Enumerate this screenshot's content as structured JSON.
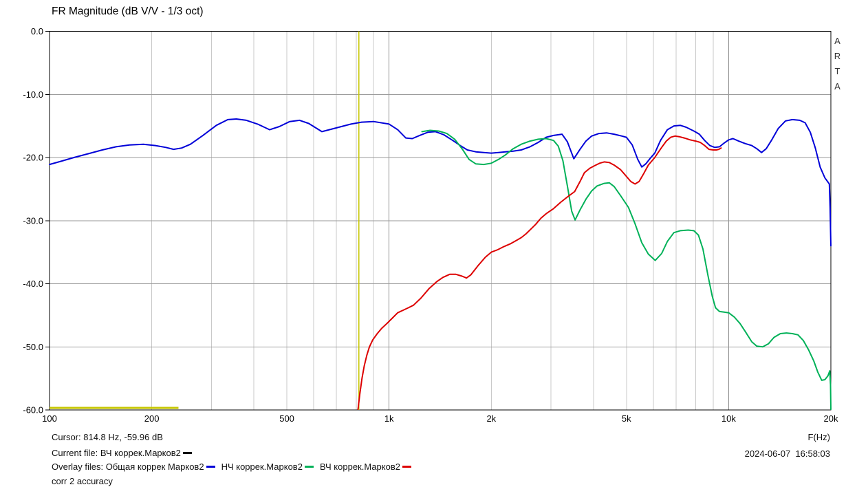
{
  "window": {
    "title": "FR Magnitude (dB V/V - 1/3 oct)",
    "watermark_vertical": "ARTA"
  },
  "statusbar": {
    "cursor_text": "Cursor: 814.8 Hz, -59.96 dB",
    "current_file_label": "Current file: ",
    "current_file_name": "ВЧ коррек.Марков2",
    "current_file_marker_color": "#000000",
    "overlay_label": "Overlay files: ",
    "overlays": [
      {
        "name": "Общая коррек Марков2",
        "color": "#0000d8"
      },
      {
        "name": "НЧ коррек.Марков2",
        "color": "#00b158"
      },
      {
        "name": "ВЧ коррек.Марков2",
        "color": "#dd0000"
      }
    ],
    "note": "corr 2 accuracy",
    "datetime": "2024-06-07  16:58:03",
    "freq_axis_unit": "F(Hz)"
  },
  "chart_data": {
    "type": "line",
    "title": "FR Magnitude (dB V/V - 1/3 oct)",
    "xlabel": "F(Hz)",
    "ylabel": "dB",
    "grid": true,
    "x_axis": {
      "scale": "log",
      "min": 100,
      "max": 20000,
      "labeled_ticks": [
        [
          100,
          "100"
        ],
        [
          200,
          "200"
        ],
        [
          500,
          "500"
        ],
        [
          1000,
          "1k"
        ],
        [
          2000,
          "2k"
        ],
        [
          5000,
          "5k"
        ],
        [
          10000,
          "10k"
        ],
        [
          20000,
          "20k"
        ]
      ],
      "minor_gridlines": [
        200,
        300,
        400,
        500,
        600,
        700,
        800,
        900,
        2000,
        3000,
        4000,
        5000,
        6000,
        7000,
        8000,
        9000
      ],
      "decade_gridlines": [
        1000,
        10000
      ]
    },
    "y_axis": {
      "min": -60,
      "max": 0,
      "step": 10,
      "tick_labels": [
        "0.0",
        "-10.0",
        "-20.0",
        "-30.0",
        "-40.0",
        "-50.0",
        "-60.0"
      ]
    },
    "colors": {
      "minor_grid": "#c9c9c9",
      "decade_grid": "#8c8c8c",
      "horizontal_grid": "#9a9a9a",
      "border": "#000000",
      "cursor": "#c6c600"
    },
    "cursor": {
      "freq": 814.8,
      "db": -59.96
    },
    "bottom_marker": {
      "from": 100,
      "to": 240,
      "db": -59.7
    },
    "series": [
      {
        "name": "Общая коррек Марков2",
        "color": "#0000d8",
        "points": [
          [
            100,
            -21.1
          ],
          [
            108,
            -20.6
          ],
          [
            118,
            -20.0
          ],
          [
            130,
            -19.4
          ],
          [
            143,
            -18.8
          ],
          [
            157,
            -18.3
          ],
          [
            172,
            -18.0
          ],
          [
            189,
            -17.9
          ],
          [
            205,
            -18.1
          ],
          [
            220,
            -18.4
          ],
          [
            232,
            -18.7
          ],
          [
            245,
            -18.5
          ],
          [
            260,
            -17.9
          ],
          [
            283,
            -16.5
          ],
          [
            310,
            -14.9
          ],
          [
            335,
            -14.0
          ],
          [
            355,
            -13.9
          ],
          [
            380,
            -14.1
          ],
          [
            410,
            -14.7
          ],
          [
            445,
            -15.6
          ],
          [
            475,
            -15.1
          ],
          [
            510,
            -14.3
          ],
          [
            545,
            -14.1
          ],
          [
            580,
            -14.6
          ],
          [
            634,
            -15.9
          ],
          [
            700,
            -15.3
          ],
          [
            772,
            -14.7
          ],
          [
            830,
            -14.4
          ],
          [
            900,
            -14.3
          ],
          [
            1000,
            -14.7
          ],
          [
            1060,
            -15.6
          ],
          [
            1120,
            -16.9
          ],
          [
            1170,
            -17.0
          ],
          [
            1230,
            -16.5
          ],
          [
            1300,
            -16.0
          ],
          [
            1370,
            -15.9
          ],
          [
            1450,
            -16.4
          ],
          [
            1540,
            -17.3
          ],
          [
            1620,
            -18.1
          ],
          [
            1700,
            -18.8
          ],
          [
            1800,
            -19.1
          ],
          [
            1900,
            -19.2
          ],
          [
            2000,
            -19.3
          ],
          [
            2100,
            -19.2
          ],
          [
            2200,
            -19.1
          ],
          [
            2320,
            -19.0
          ],
          [
            2450,
            -18.8
          ],
          [
            2600,
            -18.3
          ],
          [
            2750,
            -17.6
          ],
          [
            2900,
            -16.8
          ],
          [
            3050,
            -16.5
          ],
          [
            3230,
            -16.3
          ],
          [
            3350,
            -17.5
          ],
          [
            3500,
            -20.2
          ],
          [
            3650,
            -18.7
          ],
          [
            3800,
            -17.4
          ],
          [
            3950,
            -16.6
          ],
          [
            4150,
            -16.2
          ],
          [
            4370,
            -16.1
          ],
          [
            4600,
            -16.3
          ],
          [
            4850,
            -16.6
          ],
          [
            5000,
            -16.8
          ],
          [
            5200,
            -18.0
          ],
          [
            5400,
            -20.3
          ],
          [
            5550,
            -21.5
          ],
          [
            5700,
            -21.0
          ],
          [
            5900,
            -20.0
          ],
          [
            6060,
            -19.3
          ],
          [
            6300,
            -17.3
          ],
          [
            6600,
            -15.6
          ],
          [
            6900,
            -15.0
          ],
          [
            7200,
            -14.9
          ],
          [
            7500,
            -15.2
          ],
          [
            7900,
            -15.8
          ],
          [
            8200,
            -16.3
          ],
          [
            8500,
            -17.3
          ],
          [
            8800,
            -18.1
          ],
          [
            9100,
            -18.4
          ],
          [
            9400,
            -18.3
          ],
          [
            9700,
            -17.7
          ],
          [
            10000,
            -17.2
          ],
          [
            10300,
            -17.0
          ],
          [
            10700,
            -17.4
          ],
          [
            11200,
            -17.8
          ],
          [
            11700,
            -18.1
          ],
          [
            12100,
            -18.6
          ],
          [
            12500,
            -19.2
          ],
          [
            12900,
            -18.6
          ],
          [
            13400,
            -17.2
          ],
          [
            14000,
            -15.4
          ],
          [
            14700,
            -14.2
          ],
          [
            15400,
            -14.0
          ],
          [
            16200,
            -14.1
          ],
          [
            16800,
            -14.5
          ],
          [
            17400,
            -16.0
          ],
          [
            18000,
            -18.5
          ],
          [
            18600,
            -21.5
          ],
          [
            19200,
            -23.2
          ],
          [
            19800,
            -24.2
          ],
          [
            19900,
            -28.0
          ],
          [
            20000,
            -34.0
          ]
        ]
      },
      {
        "name": "НЧ коррек.Марков2",
        "color": "#00b158",
        "points": [
          [
            1250,
            -15.9
          ],
          [
            1320,
            -15.7
          ],
          [
            1400,
            -15.8
          ],
          [
            1480,
            -16.2
          ],
          [
            1560,
            -17.1
          ],
          [
            1640,
            -18.6
          ],
          [
            1720,
            -20.3
          ],
          [
            1800,
            -21.0
          ],
          [
            1900,
            -21.1
          ],
          [
            2000,
            -20.9
          ],
          [
            2100,
            -20.3
          ],
          [
            2200,
            -19.6
          ],
          [
            2320,
            -18.6
          ],
          [
            2450,
            -17.9
          ],
          [
            2600,
            -17.4
          ],
          [
            2750,
            -17.1
          ],
          [
            2900,
            -17.0
          ],
          [
            3050,
            -17.3
          ],
          [
            3150,
            -18.2
          ],
          [
            3250,
            -20.5
          ],
          [
            3350,
            -24.5
          ],
          [
            3450,
            -28.5
          ],
          [
            3530,
            -29.9
          ],
          [
            3650,
            -28.3
          ],
          [
            3800,
            -26.6
          ],
          [
            3950,
            -25.3
          ],
          [
            4100,
            -24.5
          ],
          [
            4300,
            -24.1
          ],
          [
            4450,
            -24.0
          ],
          [
            4600,
            -24.6
          ],
          [
            4800,
            -26.0
          ],
          [
            5070,
            -27.9
          ],
          [
            5300,
            -30.5
          ],
          [
            5550,
            -33.5
          ],
          [
            5800,
            -35.3
          ],
          [
            6080,
            -36.3
          ],
          [
            6350,
            -35.2
          ],
          [
            6600,
            -33.3
          ],
          [
            6900,
            -31.9
          ],
          [
            7200,
            -31.6
          ],
          [
            7600,
            -31.5
          ],
          [
            7900,
            -31.6
          ],
          [
            8150,
            -32.3
          ],
          [
            8400,
            -34.5
          ],
          [
            8700,
            -38.8
          ],
          [
            8950,
            -42.0
          ],
          [
            9150,
            -43.8
          ],
          [
            9400,
            -44.4
          ],
          [
            9700,
            -44.5
          ],
          [
            10000,
            -44.6
          ],
          [
            10400,
            -45.3
          ],
          [
            10800,
            -46.3
          ],
          [
            11200,
            -47.6
          ],
          [
            11700,
            -49.2
          ],
          [
            12100,
            -49.9
          ],
          [
            12600,
            -50.0
          ],
          [
            13100,
            -49.5
          ],
          [
            13600,
            -48.5
          ],
          [
            14200,
            -47.9
          ],
          [
            14800,
            -47.8
          ],
          [
            15400,
            -47.9
          ],
          [
            16000,
            -48.1
          ],
          [
            16600,
            -49.0
          ],
          [
            17200,
            -50.5
          ],
          [
            17800,
            -52.2
          ],
          [
            18300,
            -54.0
          ],
          [
            18800,
            -55.3
          ],
          [
            19200,
            -55.2
          ],
          [
            19600,
            -54.6
          ],
          [
            19850,
            -53.8
          ],
          [
            19950,
            -56.0
          ],
          [
            20000,
            -59.9
          ]
        ]
      },
      {
        "name": "ВЧ коррек.Марков2",
        "color": "#dd0000",
        "points": [
          [
            810,
            -59.9
          ],
          [
            820,
            -57.5
          ],
          [
            832,
            -55.0
          ],
          [
            845,
            -53.0
          ],
          [
            860,
            -51.3
          ],
          [
            875,
            -50.0
          ],
          [
            895,
            -48.9
          ],
          [
            920,
            -48.0
          ],
          [
            950,
            -47.1
          ],
          [
            985,
            -46.3
          ],
          [
            1020,
            -45.5
          ],
          [
            1060,
            -44.6
          ],
          [
            1100,
            -44.2
          ],
          [
            1140,
            -43.8
          ],
          [
            1180,
            -43.4
          ],
          [
            1240,
            -42.3
          ],
          [
            1310,
            -40.8
          ],
          [
            1380,
            -39.7
          ],
          [
            1440,
            -39.0
          ],
          [
            1510,
            -38.5
          ],
          [
            1570,
            -38.5
          ],
          [
            1640,
            -38.8
          ],
          [
            1690,
            -39.1
          ],
          [
            1740,
            -38.6
          ],
          [
            1830,
            -37.1
          ],
          [
            1920,
            -35.8
          ],
          [
            2000,
            -35.0
          ],
          [
            2090,
            -34.6
          ],
          [
            2180,
            -34.1
          ],
          [
            2270,
            -33.7
          ],
          [
            2360,
            -33.2
          ],
          [
            2450,
            -32.7
          ],
          [
            2530,
            -32.1
          ],
          [
            2620,
            -31.3
          ],
          [
            2700,
            -30.6
          ],
          [
            2800,
            -29.6
          ],
          [
            2900,
            -28.9
          ],
          [
            3050,
            -28.1
          ],
          [
            3200,
            -27.1
          ],
          [
            3360,
            -26.2
          ],
          [
            3520,
            -25.4
          ],
          [
            3650,
            -23.8
          ],
          [
            3760,
            -22.4
          ],
          [
            3900,
            -21.7
          ],
          [
            4030,
            -21.3
          ],
          [
            4170,
            -20.9
          ],
          [
            4300,
            -20.7
          ],
          [
            4450,
            -20.8
          ],
          [
            4600,
            -21.2
          ],
          [
            4800,
            -21.9
          ],
          [
            5000,
            -23.0
          ],
          [
            5150,
            -23.8
          ],
          [
            5300,
            -24.2
          ],
          [
            5450,
            -23.8
          ],
          [
            5600,
            -22.7
          ],
          [
            5800,
            -21.2
          ],
          [
            6060,
            -20.0
          ],
          [
            6200,
            -19.2
          ],
          [
            6350,
            -18.4
          ],
          [
            6550,
            -17.4
          ],
          [
            6750,
            -16.8
          ],
          [
            6950,
            -16.6
          ],
          [
            7150,
            -16.7
          ],
          [
            7400,
            -16.9
          ],
          [
            7700,
            -17.2
          ],
          [
            8000,
            -17.4
          ],
          [
            8250,
            -17.6
          ],
          [
            8500,
            -18.1
          ],
          [
            8750,
            -18.7
          ],
          [
            9000,
            -18.8
          ],
          [
            9200,
            -18.8
          ],
          [
            9350,
            -18.7
          ],
          [
            9500,
            -18.5
          ]
        ]
      }
    ]
  }
}
